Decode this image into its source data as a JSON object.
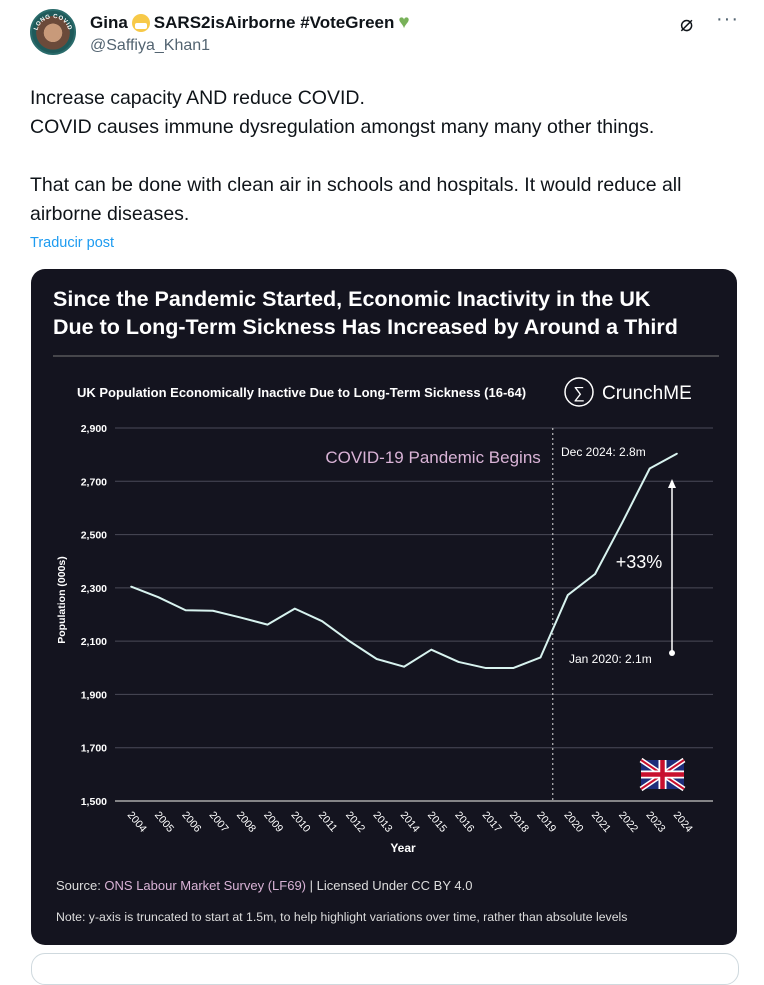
{
  "tweet": {
    "display_name": "Gina",
    "display_name_rest": "SARS2isAirborne #VoteGreen",
    "handle": "@Saffiya_Khan1",
    "avatar_text": "LONG COVID",
    "body_lines": [
      "Increase capacity AND reduce COVID.",
      "COVID causes immune dysregulation amongst many many other things.",
      "",
      "That can be done with clean air in schools and hospitals. It would reduce all airborne diseases."
    ],
    "translate_label": "Traducir post",
    "icons": [
      "mask-emoji-icon",
      "green-heart-icon",
      "grok-icon",
      "more-icon"
    ]
  },
  "chart_data": {
    "type": "line",
    "title_lines": [
      "Since the Pandemic Started, Economic Inactivity in the UK",
      "Due to Long-Term Sickness Has Increased by Around a Third"
    ],
    "subtitle": "UK Population Economically Inactive Due to Long-Term Sickness (16-64)",
    "brand": "CrunchME",
    "xlabel": "Year",
    "ylabel": "Population (000s)",
    "ylim": [
      1500,
      2900
    ],
    "yticks": [
      1500,
      1700,
      1900,
      2100,
      2300,
      2500,
      2700,
      2900
    ],
    "ytick_labels": [
      "1,500",
      "1,700",
      "1,900",
      "2,100",
      "2,300",
      "2,500",
      "2,700",
      "2,900"
    ],
    "x": [
      2004,
      2005,
      2006,
      2007,
      2008,
      2009,
      2010,
      2011,
      2012,
      2013,
      2014,
      2015,
      2016,
      2017,
      2018,
      2019,
      2020,
      2021,
      2022,
      2023,
      2024
    ],
    "values": [
      2305,
      2265,
      2216,
      2214,
      2189,
      2162,
      2222,
      2175,
      2100,
      2033,
      2004,
      2068,
      2022,
      1999,
      1999,
      2039,
      2273,
      2352,
      2546,
      2748,
      2804
    ],
    "grid": true,
    "annotations": {
      "pandemic_label": "COVID-19 Pandemic Begins",
      "pandemic_x": 2019.45,
      "end_label": "Dec 2024: 2.8m",
      "start_label": "Jan 2020: 2.1m",
      "change_label": "+33%"
    },
    "source_prefix": "Source: ",
    "source_link": "ONS Labour Market Survey (LF69)",
    "source_suffix": " | Licensed Under CC BY 4.0",
    "note": "Note: y-axis is truncated to start at 1.5m, to help highlight variations over time, rather than absolute levels",
    "colors": {
      "background": "#14141f",
      "line": "#d8f3ef",
      "accent": "#d9b3d6",
      "grid": "#4a4a58",
      "text": "#ffffff"
    }
  }
}
